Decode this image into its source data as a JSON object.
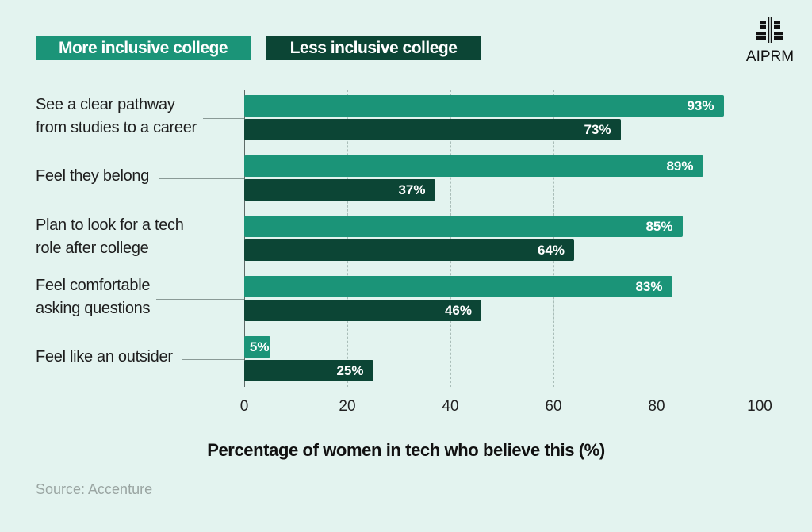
{
  "colors": {
    "more": "#1b9478",
    "less": "#0c4535",
    "background": "#e3f3ef"
  },
  "brand": {
    "name": "AIPRM",
    "icon": "aiprm-logo-icon"
  },
  "legend": {
    "more_label": "More inclusive college",
    "less_label": "Less inclusive college"
  },
  "source": "Source: Accenture",
  "chart_data": {
    "type": "bar",
    "orientation": "horizontal",
    "categories": [
      [
        "See a clear pathway",
        "from studies to a career"
      ],
      [
        "Feel they belong"
      ],
      [
        "Plan to look for a tech",
        "role after college"
      ],
      [
        "Feel comfortable",
        "asking questions"
      ],
      [
        "Feel like an outsider"
      ]
    ],
    "series": [
      {
        "name": "More inclusive college",
        "values": [
          93,
          89,
          85,
          83,
          5
        ]
      },
      {
        "name": "Less inclusive college",
        "values": [
          73,
          37,
          64,
          46,
          25
        ]
      }
    ],
    "value_suffix": "%",
    "xlabel": "Percentage of women in tech who believe this (%)",
    "xlim": [
      0,
      100
    ],
    "xticks": [
      0,
      20,
      40,
      60,
      80,
      100
    ],
    "grid": true,
    "legend_position": "top-left"
  }
}
